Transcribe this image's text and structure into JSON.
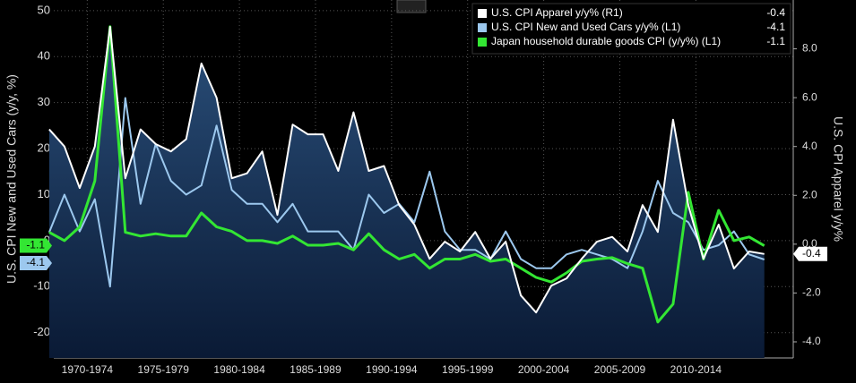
{
  "chart_data": {
    "type": "line",
    "ylabel": "U.S. CPI New and Used Cars (y/y, %)",
    "y2label": "U.S. CPI Apparel y/y%",
    "x": [
      1970,
      1971,
      1972,
      1973,
      1974,
      1975,
      1976,
      1977,
      1978,
      1979,
      1980,
      1981,
      1982,
      1983,
      1984,
      1985,
      1986,
      1987,
      1988,
      1989,
      1990,
      1991,
      1992,
      1993,
      1994,
      1995,
      1996,
      1997,
      1998,
      1999,
      2000,
      2001,
      2002,
      2003,
      2004,
      2005,
      2006,
      2007,
      2008,
      2009,
      2010,
      2011,
      2012,
      2013,
      2014,
      2015,
      2016,
      2017
    ],
    "xlim": [
      1970.3,
      2018.9
    ],
    "xticks": [
      {
        "value": 1972.5,
        "label": "1970-1974"
      },
      {
        "value": 1977.5,
        "label": "1975-1979"
      },
      {
        "value": 1982.5,
        "label": "1980-1984"
      },
      {
        "value": 1987.5,
        "label": "1985-1989"
      },
      {
        "value": 1992.5,
        "label": "1990-1994"
      },
      {
        "value": 1997.5,
        "label": "1995-1999"
      },
      {
        "value": 2002.5,
        "label": "2000-2004"
      },
      {
        "value": 2007.5,
        "label": "2005-2009"
      },
      {
        "value": 2012.5,
        "label": "2010-2014"
      }
    ],
    "ylim": [
      -25.5,
      52.3
    ],
    "yticks": [
      -20,
      -10,
      0,
      10,
      20,
      30,
      40,
      50
    ],
    "y2lim": [
      -4.66,
      10.0
    ],
    "y2ticks": [
      {
        "value": -4,
        "label": "-4.0"
      },
      {
        "value": -2,
        "label": "-2.0"
      },
      {
        "value": 0,
        "label": "0.0"
      },
      {
        "value": 2,
        "label": "2.0"
      },
      {
        "value": 4,
        "label": "4.0"
      },
      {
        "value": 6,
        "label": "6.0"
      },
      {
        "value": 8,
        "label": "8.0"
      }
    ],
    "grid": true,
    "legend": "top-right",
    "series": [
      {
        "name": "U.S. CPI Apparel y/y% (R1)",
        "color": "#ffffff",
        "axis": "y2",
        "fill": true,
        "last": -0.4,
        "values": [
          4.7,
          4.0,
          2.3,
          4.0,
          8.9,
          2.7,
          4.7,
          4.1,
          3.8,
          4.3,
          7.4,
          6.0,
          2.7,
          2.9,
          3.8,
          1.2,
          4.9,
          4.5,
          4.5,
          3.0,
          5.4,
          3.0,
          3.2,
          1.6,
          0.8,
          -0.6,
          0.1,
          -0.3,
          0.5,
          -0.6,
          0.1,
          -2.1,
          -2.8,
          -1.7,
          -1.4,
          -0.6,
          0.1,
          0.3,
          -0.3,
          1.6,
          0.5,
          5.1,
          1.6,
          -0.6,
          0.8,
          -1.0,
          -0.3,
          -0.4
        ]
      },
      {
        "name": "U.S. CPI New and Used Cars y/y%  (L1)",
        "color": "#9cc8ee",
        "last": -4.1,
        "values": [
          1.8,
          10,
          2,
          9,
          -10,
          31,
          8,
          21,
          13,
          10,
          12,
          25,
          11,
          8,
          8,
          4,
          8,
          2,
          2,
          2,
          -2,
          10,
          6,
          8,
          4,
          15,
          2,
          -2,
          -2,
          -4,
          2,
          -4,
          -6,
          -6,
          -3,
          -2,
          -3,
          -4,
          -6,
          2,
          13,
          6,
          4,
          -2,
          -1,
          2,
          -3,
          -4.1
        ]
      },
      {
        "name": "Japan household durable goods CPI (y/y%) (L1)",
        "color": "#33e633",
        "last": -1.1,
        "values": [
          1.8,
          0,
          3,
          13,
          46.5,
          1.8,
          1,
          1.5,
          1,
          1,
          6,
          3,
          2,
          0,
          0,
          -0.6,
          1,
          -1,
          -1,
          -0.6,
          -2,
          1.5,
          -2,
          -4,
          -3,
          -6,
          -4,
          -4,
          -3,
          -4.5,
          -4,
          -6,
          -8,
          -9,
          -7,
          -4.5,
          -4,
          -3.7,
          -5,
          -6,
          -17.7,
          -13.8,
          10.5,
          -4,
          6.6,
          0,
          0.8,
          -1.1
        ]
      }
    ]
  }
}
